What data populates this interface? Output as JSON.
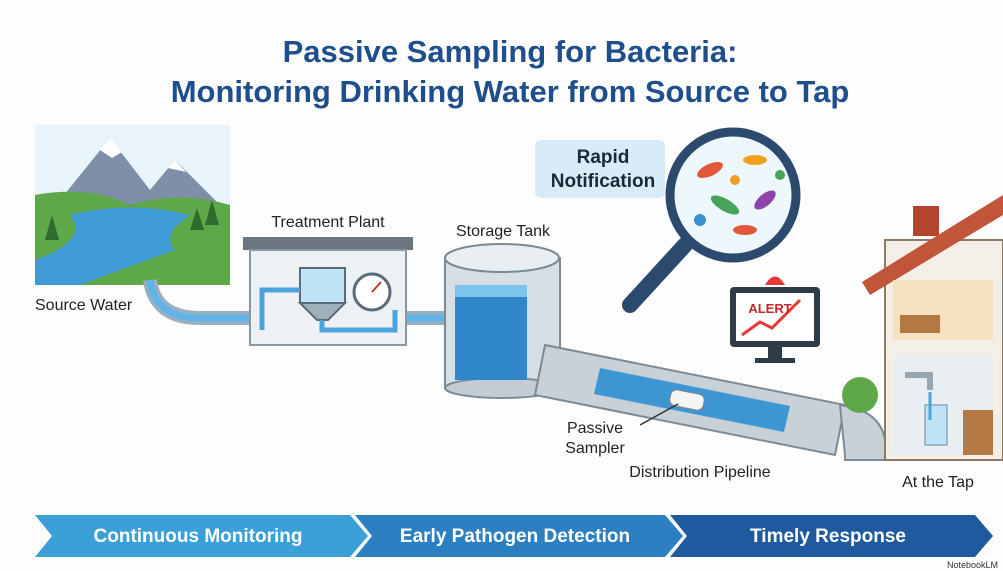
{
  "title": {
    "lines": [
      "Passive Sampling for Bacteria:",
      "Monitoring Drinking Water from Source to Tap"
    ]
  },
  "stages": {
    "source": "Source Water",
    "treatment": "Treatment Plant",
    "storage": "Storage Tank",
    "pipeline": "Distribution Pipeline",
    "sampler": [
      "Passive",
      "Sampler"
    ],
    "tap": "At the Tap"
  },
  "notification": {
    "lines": [
      "Rapid",
      "Notification"
    ],
    "alert": "ALERT"
  },
  "banner": {
    "steps": [
      "Continuous Monitoring",
      "Early Pathogen Detection",
      "Timely Response"
    ]
  },
  "watermark": "NotebookLM"
}
